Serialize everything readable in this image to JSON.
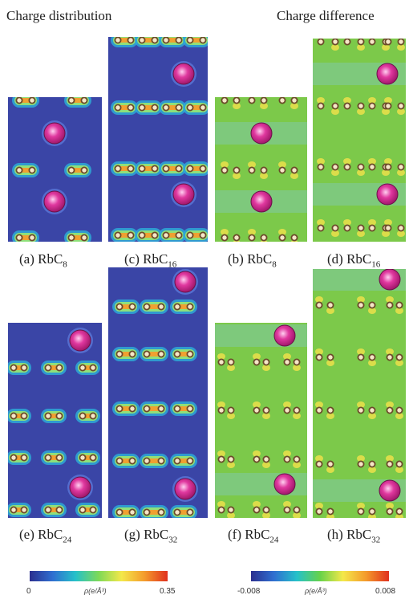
{
  "headings": {
    "left": "Charge distribution",
    "right": "Charge difference"
  },
  "panels": [
    {
      "id": "a",
      "kind": "distribution",
      "label": "(a) RbC",
      "sub": "8"
    },
    {
      "id": "c",
      "kind": "distribution",
      "label": "(c) RbC",
      "sub": "16"
    },
    {
      "id": "b",
      "kind": "difference",
      "label": "(b) RbC",
      "sub": "8"
    },
    {
      "id": "d",
      "kind": "difference",
      "label": "(d) RbC",
      "sub": "16"
    },
    {
      "id": "e",
      "kind": "distribution",
      "label": "(e) RbC",
      "sub": "24"
    },
    {
      "id": "g",
      "kind": "distribution",
      "label": "(g) RbC",
      "sub": "32"
    },
    {
      "id": "f",
      "kind": "difference",
      "label": "(f) RbC",
      "sub": "24"
    },
    {
      "id": "h",
      "kind": "difference",
      "label": "(h) RbC",
      "sub": "32"
    }
  ],
  "colorbars": {
    "distribution": {
      "min": "0",
      "max": "0.35",
      "title": "ρ(e/Å³)",
      "colors": [
        "#2b2f8f",
        "#2f6fd1",
        "#25c1c9",
        "#7ed957",
        "#f4e84a",
        "#f49b2c",
        "#e0301e"
      ]
    },
    "difference": {
      "min": "-0.008",
      "max": "0.008",
      "title": "ρ(e/Å³)",
      "colors": [
        "#2b2f8f",
        "#2f6fd1",
        "#25c1c9",
        "#66d24a",
        "#f4e84a",
        "#f49b2c",
        "#e0301e"
      ]
    }
  }
}
